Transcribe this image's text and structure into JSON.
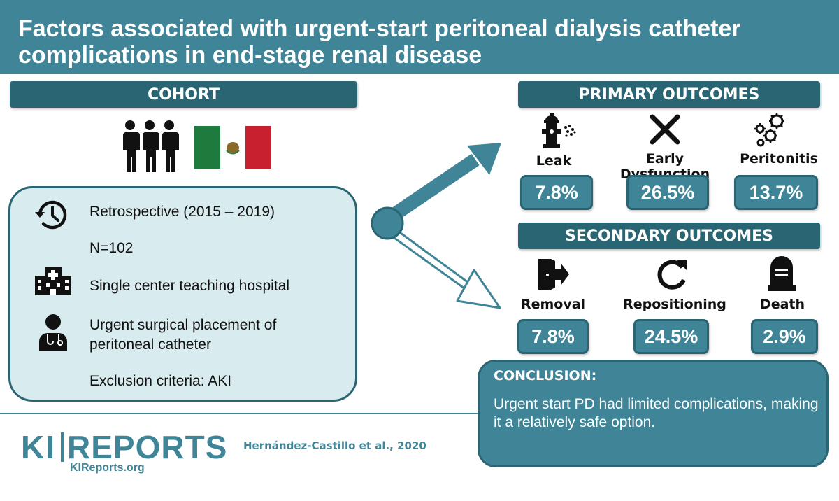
{
  "title": "Factors associated with urgent-start peritoneal dialysis catheter complications in end-stage renal disease",
  "cohort": {
    "header": "COHORT",
    "icons": [
      "people-icon",
      "mexico-flag-icon"
    ],
    "items": [
      {
        "icon": "clock-history-icon",
        "text": "Retrospective (2015 – 2019)"
      },
      {
        "icon": "",
        "text": "N=102"
      },
      {
        "icon": "hospital-icon",
        "text": "Single center teaching hospital"
      },
      {
        "icon": "doctor-icon",
        "text_line1": " Urgent surgical placement of",
        "text_line2": "peritoneal catheter"
      },
      {
        "icon": "",
        "text": "Exclusion criteria: AKI"
      }
    ]
  },
  "primary": {
    "header": "PRIMARY OUTCOMES",
    "outcomes": [
      {
        "icon": "hydrant-leak-icon",
        "label": "Leak",
        "value": "7.8%"
      },
      {
        "icon": "x-icon",
        "label": "Early Dysfunction",
        "value": "26.5%"
      },
      {
        "icon": "bacteria-icon",
        "label": "Peritonitis",
        "value": "13.7%"
      }
    ]
  },
  "secondary": {
    "header": "SECONDARY OUTCOMES",
    "outcomes": [
      {
        "icon": "exit-door-icon",
        "label": "Removal",
        "value": "7.8%"
      },
      {
        "icon": "redo-icon",
        "label": "Repositioning",
        "value": "24.5%"
      },
      {
        "icon": "tombstone-icon",
        "label": "Death",
        "value": "2.9%"
      }
    ]
  },
  "conclusion": {
    "title": "CONCLUSION:",
    "text": "Urgent start PD had limited complications, making it a relatively safe option."
  },
  "footer": {
    "logo_ki": "KI",
    "logo_reports": "REPORTS",
    "logo_url": "KIReports.org",
    "citation": "Hernández-Castillo et al., 2020"
  },
  "colors": {
    "teal": "#3f8597",
    "dark_teal": "#2a6574",
    "light_box": "#d8ebef",
    "flag_green": "#1f7a3e",
    "flag_red": "#c8202e"
  }
}
